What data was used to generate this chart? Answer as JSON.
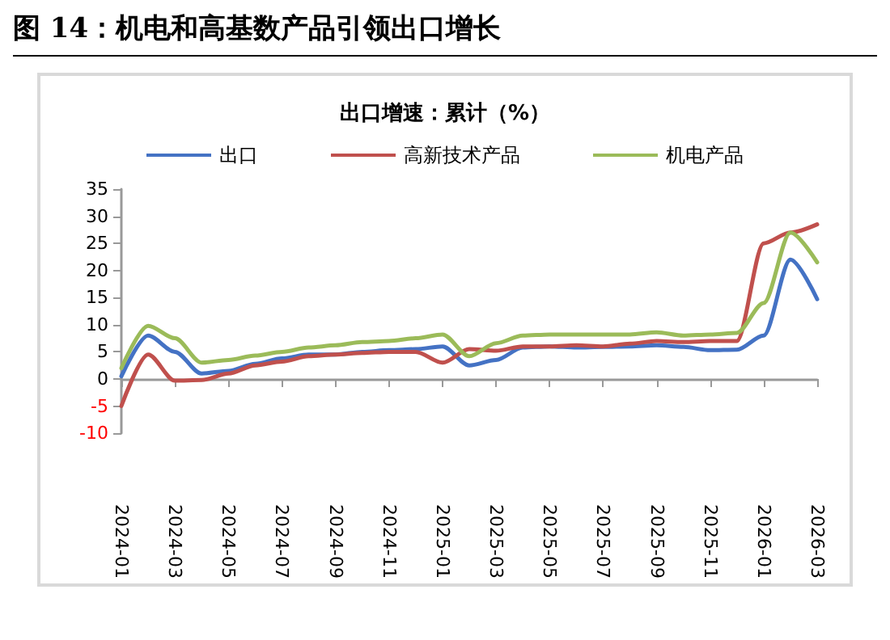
{
  "chart_data": {
    "type": "line",
    "title": "图 14：机电和高基数产品引领出口增长",
    "subtitle": "出口增速：累计（%）",
    "categories": [
      "2024-01",
      null,
      "2024-03",
      null,
      "2024-05",
      null,
      "2024-07",
      null,
      "2024-09",
      null,
      "2024-11",
      null,
      "2025-01",
      null,
      "2025-03",
      null,
      "2025-05",
      null,
      "2025-07",
      null,
      "2025-09",
      null,
      "2025-11",
      null,
      "2026-01",
      null,
      "2026-03"
    ],
    "series": [
      {
        "name": "出口",
        "color": "#4472c4",
        "values": [
          0.5,
          8,
          5,
          1,
          1.5,
          2.8,
          3.8,
          4.5,
          4.5,
          5,
          5.3,
          5.5,
          6,
          2.5,
          3.5,
          5.8,
          6,
          5.8,
          5.9,
          6,
          6.2,
          5.9,
          5.3,
          5.4,
          8,
          22,
          14.7
        ]
      },
      {
        "name": "高新技术产品",
        "color": "#c0504d",
        "values": [
          -5,
          4.5,
          -0.3,
          -0.2,
          1,
          2.5,
          3.2,
          4.2,
          4.5,
          4.8,
          5,
          5,
          3,
          5.5,
          5.2,
          6,
          6,
          6.2,
          6,
          6.5,
          7,
          6.8,
          7,
          7,
          25,
          27,
          28.5
        ]
      },
      {
        "name": "机电产品",
        "color": "#9bbb59",
        "values": [
          2,
          9.8,
          7.5,
          3,
          3.5,
          4.3,
          5,
          5.8,
          6.2,
          6.8,
          7,
          7.5,
          8.2,
          4.2,
          6.6,
          8,
          8.2,
          8.2,
          8.2,
          8.2,
          8.6,
          8,
          8.2,
          8.5,
          14,
          27,
          21.5
        ]
      }
    ],
    "ylim": [
      -10,
      35
    ],
    "yticks": [
      -10,
      -5,
      0,
      5,
      10,
      15,
      20,
      25,
      30,
      35
    ],
    "legend": "top",
    "marker": "none",
    "line_style": "solid"
  }
}
